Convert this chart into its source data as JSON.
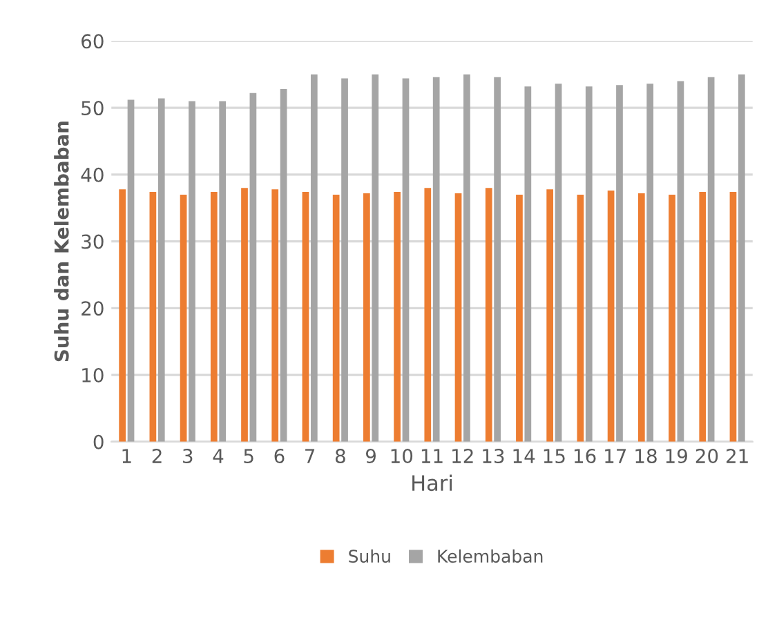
{
  "chart_data": {
    "type": "bar",
    "xlabel": "Hari",
    "ylabel": "Suhu dan Kelembaban",
    "categories": [
      "1",
      "2",
      "3",
      "4",
      "5",
      "6",
      "7",
      "8",
      "9",
      "10",
      "11",
      "12",
      "13",
      "14",
      "15",
      "16",
      "17",
      "18",
      "19",
      "20",
      "21"
    ],
    "series": [
      {
        "name": "Suhu",
        "color": "#ed7d31",
        "values": [
          37.8,
          37.4,
          37.0,
          37.4,
          38.0,
          37.8,
          37.4,
          37.0,
          37.2,
          37.4,
          38.0,
          37.2,
          38.0,
          37.0,
          37.8,
          37.0,
          37.6,
          37.2,
          37.0,
          37.4,
          37.4
        ]
      },
      {
        "name": "Kelembaban",
        "color": "#a5a5a5",
        "values": [
          51.2,
          51.4,
          51.0,
          51.0,
          52.2,
          52.8,
          55.0,
          54.4,
          55.0,
          54.4,
          54.6,
          55.0,
          54.6,
          53.2,
          53.6,
          53.2,
          53.4,
          53.6,
          54.0,
          54.6,
          55.0
        ]
      }
    ],
    "ylim": [
      0,
      60
    ],
    "yticks": [
      0,
      10,
      20,
      30,
      40,
      50,
      60
    ],
    "grid": "y",
    "legend": "bottom"
  }
}
